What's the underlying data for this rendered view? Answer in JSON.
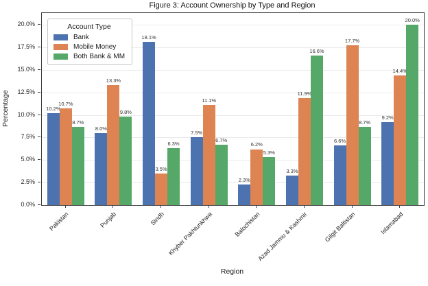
{
  "chart_data": {
    "type": "bar",
    "title": "Figure 3: Account Ownership by Type and Region",
    "xlabel": "Region",
    "ylabel": "Percentage",
    "legend_title": "Account Type",
    "legend_position": "upper left",
    "grid": true,
    "categories": [
      "Pakistan",
      "Punjab",
      "Sindh",
      "Khyber Pakhtunkhwa",
      "Balochistan",
      "Azad Jammu & Kashmir",
      "Gilgit Baltistan",
      "Islamabad"
    ],
    "series": [
      {
        "name": "Bank",
        "color": "#4C72B0",
        "values": [
          10.2,
          8.0,
          18.1,
          7.5,
          2.3,
          3.3,
          6.6,
          9.2
        ]
      },
      {
        "name": "Mobile Money",
        "color": "#DD8452",
        "values": [
          10.7,
          13.3,
          3.5,
          11.1,
          6.2,
          11.9,
          17.7,
          14.4
        ]
      },
      {
        "name": "Both Bank & MM",
        "color": "#55A868",
        "values": [
          8.7,
          9.8,
          6.3,
          6.7,
          5.3,
          16.6,
          8.7,
          20.0
        ]
      }
    ],
    "value_label_suffix": "%",
    "ylim": [
      0,
      21.3
    ],
    "yticks": [
      {
        "label": "0.0%",
        "value": 0
      },
      {
        "label": "2.5%",
        "value": 2.5
      },
      {
        "label": "5.0%",
        "value": 5
      },
      {
        "label": "7.5%",
        "value": 7.5
      },
      {
        "label": "10.0%",
        "value": 10
      },
      {
        "label": "12.5%",
        "value": 12.5
      },
      {
        "label": "15.0%",
        "value": 15
      },
      {
        "label": "17.5%",
        "value": 17.5
      },
      {
        "label": "20.0%",
        "value": 20
      }
    ]
  }
}
